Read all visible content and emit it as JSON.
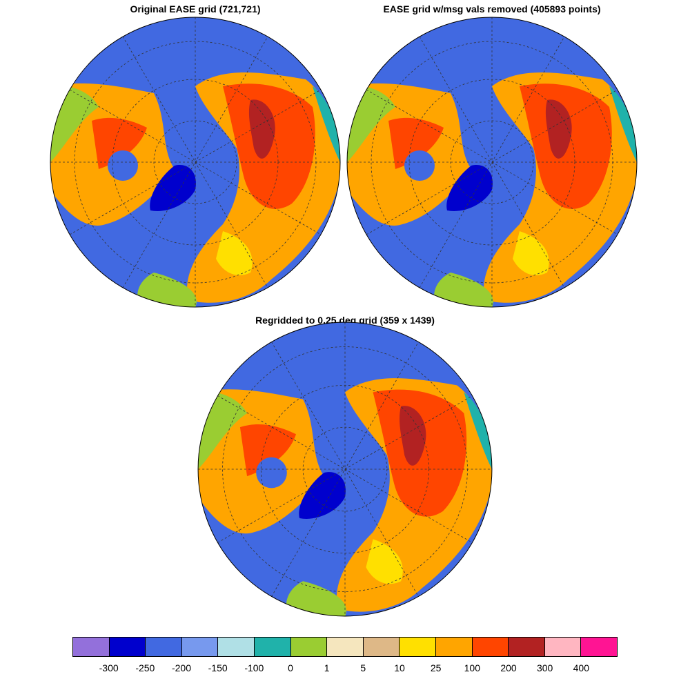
{
  "panels": [
    {
      "title": "Original EASE grid (721,721)"
    },
    {
      "title": "EASE grid w/msg vals removed (405893 points)"
    },
    {
      "title": "Regridded to 0.25 deg grid (359 x 1439)"
    }
  ],
  "colorbar": {
    "colors": [
      "#9370DB",
      "#0000CD",
      "#4169E1",
      "#7799EE",
      "#B0E0E6",
      "#20B2AA",
      "#9ACD32",
      "#F5E6BE",
      "#DEB887",
      "#FFE000",
      "#FFA500",
      "#FF4500",
      "#B22222",
      "#FFB6C1",
      "#FF1493"
    ],
    "labels": [
      "-300",
      "-250",
      "-200",
      "-150",
      "-100",
      "0",
      "1",
      "5",
      "10",
      "25",
      "100",
      "200",
      "300",
      "400"
    ]
  }
}
